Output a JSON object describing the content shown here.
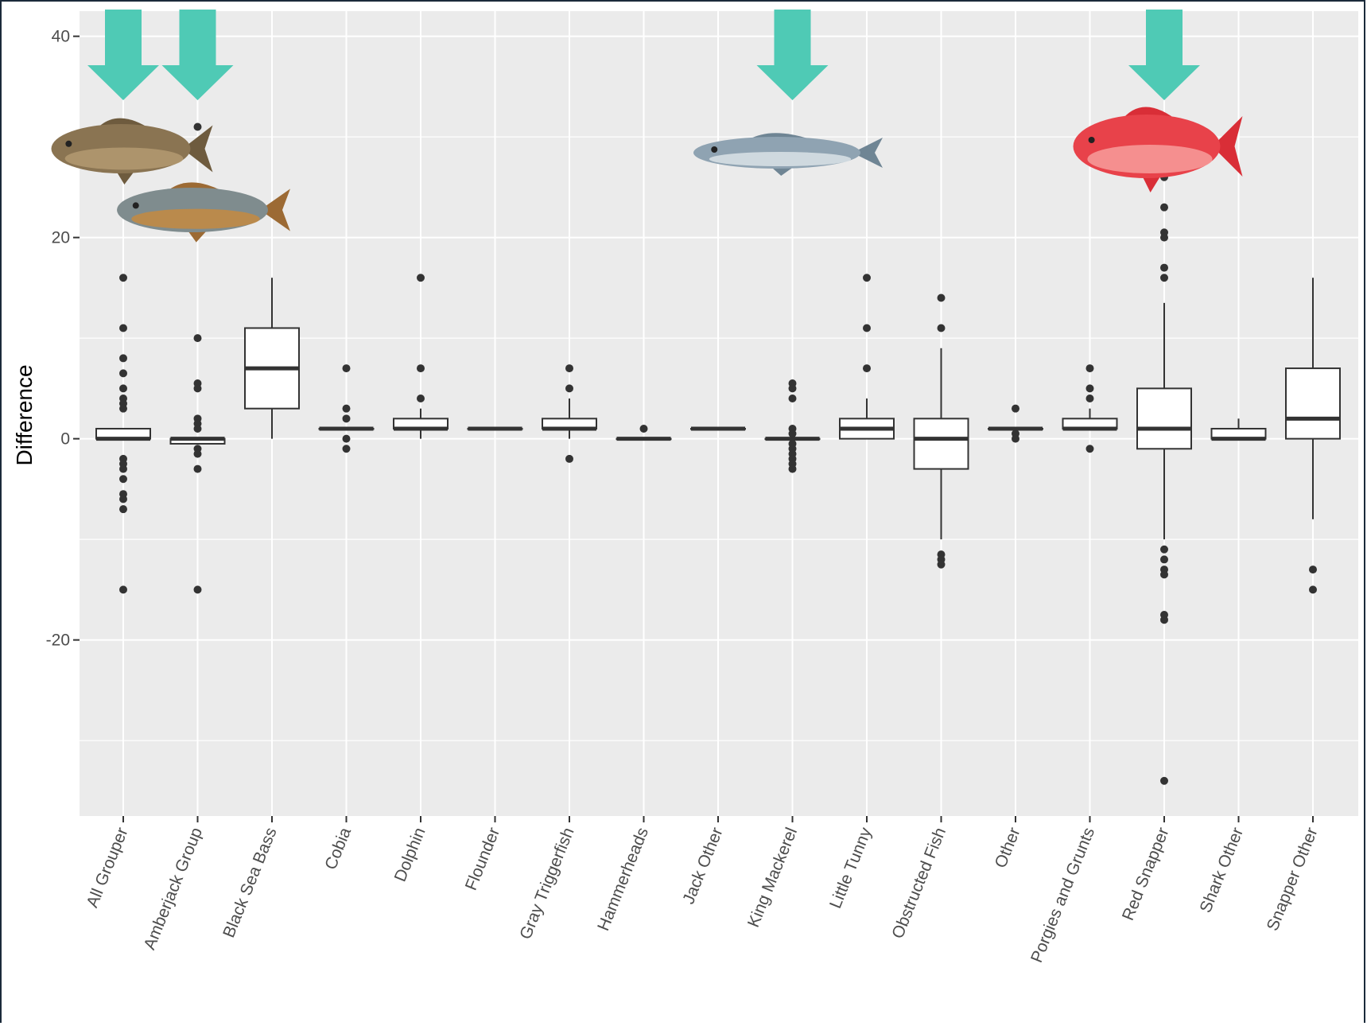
{
  "chart_data": {
    "type": "boxplot",
    "ylabel": "Difference",
    "xlabel": "",
    "ylim": [
      -37.5,
      42.5
    ],
    "yticks": [
      40,
      20,
      0,
      -20
    ],
    "grid": true,
    "categories": [
      "All Grouper",
      "Amberjack Group",
      "Black Sea Bass",
      "Cobia",
      "Dolphin",
      "Flounder",
      "Gray Triggerfish",
      "Hammerheads",
      "Jack Other",
      "King Mackerel",
      "Little Tunny",
      "Obstructed Fish",
      "Other",
      "Porgies and Grunts",
      "Red Snapper",
      "Shark Other",
      "Snapper Other"
    ],
    "boxes": [
      {
        "q1": 0,
        "median": 0,
        "q3": 1,
        "whisker_low": 0,
        "whisker_high": 1,
        "outliers": [
          16,
          11,
          8,
          6.5,
          5,
          4,
          3.5,
          3,
          -2,
          -2.5,
          -3,
          -4,
          -5.5,
          -6,
          -7,
          -15
        ]
      },
      {
        "q1": -0.5,
        "median": 0,
        "q3": 0,
        "whisker_low": -0.5,
        "whisker_high": 0,
        "outliers": [
          31,
          10,
          5.5,
          5,
          2,
          1.5,
          1,
          -1,
          -1.5,
          -3,
          -15
        ]
      },
      {
        "q1": 3,
        "median": 7,
        "q3": 11,
        "whisker_low": 0,
        "whisker_high": 16,
        "outliers": []
      },
      {
        "q1": 1,
        "median": 1,
        "q3": 1,
        "whisker_low": 1,
        "whisker_high": 1,
        "outliers": [
          7,
          3,
          2,
          0,
          -1
        ]
      },
      {
        "q1": 1,
        "median": 1,
        "q3": 2,
        "whisker_low": 0,
        "whisker_high": 3,
        "outliers": [
          16,
          7,
          4
        ]
      },
      {
        "q1": 1,
        "median": 1,
        "q3": 1,
        "whisker_low": 1,
        "whisker_high": 1,
        "outliers": []
      },
      {
        "q1": 1,
        "median": 1,
        "q3": 2,
        "whisker_low": 0,
        "whisker_high": 4,
        "outliers": [
          7,
          5,
          -2
        ]
      },
      {
        "q1": 0,
        "median": 0,
        "q3": 0,
        "whisker_low": 0,
        "whisker_high": 0,
        "outliers": [
          1
        ]
      },
      {
        "q1": 1,
        "median": 1,
        "q3": 1,
        "whisker_low": 1,
        "whisker_high": 1,
        "outliers": []
      },
      {
        "q1": 0,
        "median": 0,
        "q3": 0,
        "whisker_low": 0,
        "whisker_high": 0,
        "outliers": [
          5.5,
          5,
          4,
          1,
          0.5,
          -0.5,
          -1,
          -1.5,
          -2,
          -2.5,
          -3
        ]
      },
      {
        "q1": 0,
        "median": 1,
        "q3": 2,
        "whisker_low": 0,
        "whisker_high": 4,
        "outliers": [
          16,
          11,
          7
        ]
      },
      {
        "q1": -3,
        "median": 0,
        "q3": 2,
        "whisker_low": -10,
        "whisker_high": 9,
        "outliers": [
          14,
          11,
          -11.5,
          -12,
          -12.5
        ]
      },
      {
        "q1": 1,
        "median": 1,
        "q3": 1,
        "whisker_low": 1,
        "whisker_high": 1,
        "outliers": [
          3,
          0.5,
          0
        ]
      },
      {
        "q1": 1,
        "median": 1,
        "q3": 2,
        "whisker_low": 1,
        "whisker_high": 3,
        "outliers": [
          7,
          5,
          4,
          -1
        ]
      },
      {
        "q1": -1,
        "median": 1,
        "q3": 5,
        "whisker_low": -10,
        "whisker_high": 13.5,
        "outliers": [
          26,
          23,
          20.5,
          20,
          17,
          16,
          -11,
          -12,
          -13,
          -13.5,
          -17.5,
          -18,
          -34
        ]
      },
      {
        "q1": 0,
        "median": 0,
        "q3": 1,
        "whisker_low": 0,
        "whisker_high": 2,
        "outliers": []
      },
      {
        "q1": 0,
        "median": 2,
        "q3": 7,
        "whisker_low": -8,
        "whisker_high": 16,
        "outliers": [
          -13,
          -15
        ]
      }
    ],
    "highlights": [
      {
        "category": "All Grouper",
        "fish": "grouper-illustration",
        "color": "#8a7452"
      },
      {
        "category": "Amberjack Group",
        "fish": "amberjack-illustration",
        "color": "#b5722e"
      },
      {
        "category": "King Mackerel",
        "fish": "king-mackerel-illustration",
        "color": "#8fa3b2"
      },
      {
        "category": "Red Snapper",
        "fish": "red-snapper-illustration",
        "color": "#e8424a"
      }
    ],
    "colors": {
      "panel_bg": "#ebebeb",
      "grid_major": "#ffffff",
      "box_fill": "#ffffff",
      "box_stroke": "#333333",
      "arrow": "#4fcab5"
    }
  }
}
